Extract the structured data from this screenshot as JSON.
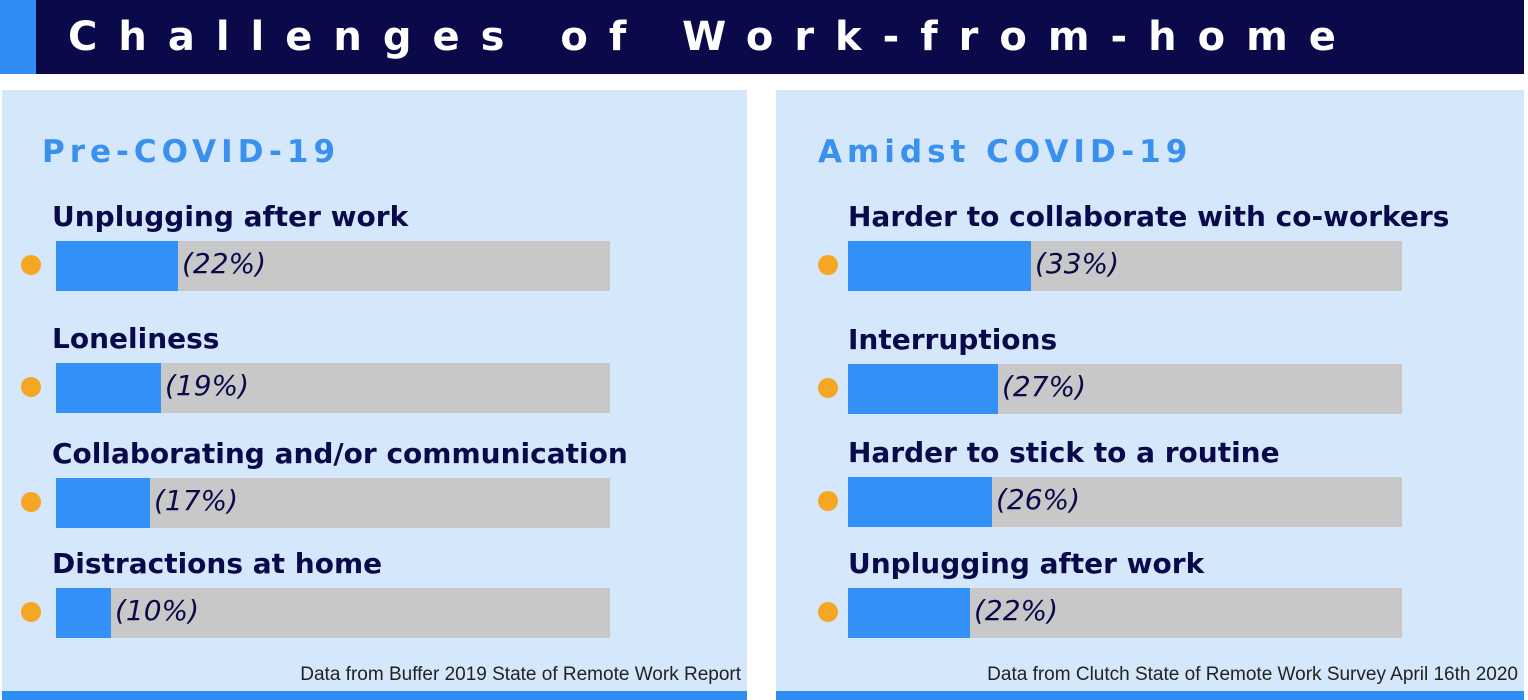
{
  "header": {
    "title": "Challenges of Work-from-home"
  },
  "colors": {
    "header_bg": "#0a0a4a",
    "accent": "#2f8ef4",
    "panel_bg": "#d4e7fb",
    "bar_fill": "#3390f7",
    "bar_track": "#c8c8c8",
    "bullet": "#f5a623",
    "panel_title": "#3a90ee"
  },
  "chart_data": [
    {
      "type": "bar",
      "orientation": "horizontal",
      "title": "Pre-COVID-19",
      "categories": [
        "Unplugging after work",
        "Loneliness",
        "Collaborating and/or communication",
        "Distractions at home"
      ],
      "values": [
        22,
        19,
        17,
        10
      ],
      "value_labels": [
        "(22%)",
        "(19%)",
        "(17%)",
        "(10%)"
      ],
      "xlim": [
        0,
        100
      ],
      "unit": "%",
      "source": "Data from Buffer 2019 State of Remote Work Report"
    },
    {
      "type": "bar",
      "orientation": "horizontal",
      "title": "Amidst COVID-19",
      "categories": [
        "Harder to collaborate with co-workers",
        "Interruptions",
        "Harder to stick to a routine",
        "Unplugging after work"
      ],
      "values": [
        33,
        27,
        26,
        22
      ],
      "value_labels": [
        "(33%)",
        "(27%)",
        "(26%)",
        "(22%)"
      ],
      "xlim": [
        0,
        100
      ],
      "unit": "%",
      "source": "Data from Clutch State of Remote Work Survey April 16th 2020"
    }
  ]
}
